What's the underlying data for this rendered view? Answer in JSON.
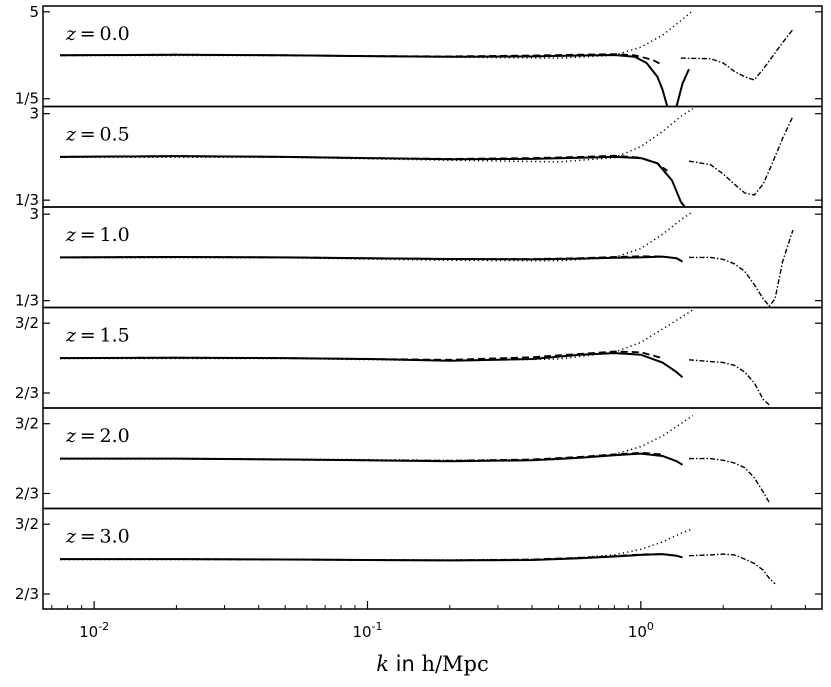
{
  "chart_data": {
    "type": "line",
    "xlabel": "k in h/Mpc",
    "xscale": "log",
    "xlim": [
      0.0065,
      4.6
    ],
    "xticks": [
      "10^-2",
      "10^-1",
      "10^0"
    ],
    "series_styles": [
      "solid",
      "dashed",
      "dotted",
      "dash-dot"
    ],
    "panels": [
      {
        "label": "z = 0.0",
        "yscale": "log",
        "ylim": [
          0.15,
          6.2
        ],
        "yticks": [
          {
            "label": "5",
            "value": 5
          },
          {
            "label": "1/5",
            "value": 0.2
          }
        ],
        "solid": [
          [
            0.0075,
            1.0
          ],
          [
            0.02,
            1.02
          ],
          [
            0.05,
            1.0
          ],
          [
            0.1,
            0.97
          ],
          [
            0.2,
            0.95
          ],
          [
            0.4,
            0.96
          ],
          [
            0.6,
            0.99
          ],
          [
            0.8,
            1.01
          ],
          [
            0.95,
            0.95
          ],
          [
            1.05,
            0.75
          ],
          [
            1.15,
            0.45
          ],
          [
            1.2,
            0.28
          ],
          [
            1.25,
            0.15
          ]
        ],
        "solid_b": [
          [
            1.35,
            0.15
          ],
          [
            1.42,
            0.35
          ],
          [
            1.5,
            0.6
          ]
        ],
        "dashed": [
          [
            0.0075,
            1.0
          ],
          [
            0.02,
            1.02
          ],
          [
            0.05,
            1.0
          ],
          [
            0.1,
            0.97
          ],
          [
            0.2,
            0.96
          ],
          [
            0.4,
            0.99
          ],
          [
            0.6,
            1.02
          ],
          [
            0.8,
            1.04
          ],
          [
            0.95,
            1.0
          ],
          [
            1.1,
            0.85
          ],
          [
            1.2,
            0.7
          ]
        ],
        "dotted": [
          [
            0.0075,
            0.99
          ],
          [
            0.05,
            0.99
          ],
          [
            0.2,
            0.93
          ],
          [
            0.5,
            0.9
          ],
          [
            0.8,
            1.0
          ],
          [
            1.0,
            1.35
          ],
          [
            1.2,
            2.1
          ],
          [
            1.4,
            3.6
          ],
          [
            1.55,
            5.2
          ]
        ],
        "dashdot": [
          [
            1.4,
            0.9
          ],
          [
            1.8,
            0.88
          ],
          [
            2.0,
            0.75
          ],
          [
            2.2,
            0.55
          ],
          [
            2.4,
            0.45
          ],
          [
            2.6,
            0.4
          ],
          [
            2.8,
            0.6
          ],
          [
            3.0,
            0.9
          ],
          [
            3.3,
            1.6
          ],
          [
            3.6,
            2.6
          ]
        ]
      },
      {
        "label": "z = 0.5",
        "yscale": "log",
        "ylim": [
          0.28,
          3.6
        ],
        "yticks": [
          {
            "label": "3",
            "value": 3
          },
          {
            "label": "1/3",
            "value": 0.3333
          }
        ],
        "solid": [
          [
            0.0075,
            1.0
          ],
          [
            0.02,
            1.02
          ],
          [
            0.05,
            1.0
          ],
          [
            0.1,
            0.97
          ],
          [
            0.2,
            0.94
          ],
          [
            0.4,
            0.95
          ],
          [
            0.6,
            0.98
          ],
          [
            0.8,
            1.0
          ],
          [
            1.0,
            0.97
          ],
          [
            1.15,
            0.85
          ],
          [
            1.3,
            0.55
          ],
          [
            1.4,
            0.32
          ],
          [
            1.45,
            0.28
          ]
        ],
        "dashed": [
          [
            0.0075,
            1.0
          ],
          [
            0.02,
            1.02
          ],
          [
            0.05,
            1.0
          ],
          [
            0.1,
            0.97
          ],
          [
            0.2,
            0.95
          ],
          [
            0.4,
            0.97
          ],
          [
            0.6,
            1.0
          ],
          [
            0.8,
            1.03
          ],
          [
            1.0,
            0.98
          ],
          [
            1.15,
            0.85
          ],
          [
            1.25,
            0.7
          ]
        ],
        "dotted": [
          [
            0.0075,
            0.99
          ],
          [
            0.05,
            0.99
          ],
          [
            0.2,
            0.92
          ],
          [
            0.5,
            0.88
          ],
          [
            0.8,
            0.98
          ],
          [
            1.0,
            1.3
          ],
          [
            1.2,
            1.9
          ],
          [
            1.4,
            2.8
          ],
          [
            1.55,
            3.4
          ]
        ],
        "dashdot": [
          [
            1.5,
            0.9
          ],
          [
            1.8,
            0.82
          ],
          [
            2.0,
            0.65
          ],
          [
            2.2,
            0.5
          ],
          [
            2.4,
            0.4
          ],
          [
            2.6,
            0.38
          ],
          [
            2.8,
            0.5
          ],
          [
            3.0,
            0.8
          ],
          [
            3.3,
            1.6
          ],
          [
            3.6,
            2.8
          ]
        ]
      },
      {
        "label": "z = 1.0",
        "yscale": "log",
        "ylim": [
          0.28,
          3.6
        ],
        "yticks": [
          {
            "label": "3",
            "value": 3
          },
          {
            "label": "1/3",
            "value": 0.3333
          }
        ],
        "solid": [
          [
            0.0075,
            1.0
          ],
          [
            0.02,
            1.01
          ],
          [
            0.05,
            1.0
          ],
          [
            0.1,
            0.98
          ],
          [
            0.2,
            0.96
          ],
          [
            0.4,
            0.95
          ],
          [
            0.6,
            0.97
          ],
          [
            0.8,
            0.99
          ],
          [
            1.0,
            1.0
          ],
          [
            1.2,
            1.02
          ],
          [
            1.35,
            0.98
          ],
          [
            1.42,
            0.9
          ]
        ],
        "dashed": [
          [
            0.0075,
            1.0
          ],
          [
            0.02,
            1.01
          ],
          [
            0.05,
            1.0
          ],
          [
            0.1,
            0.98
          ],
          [
            0.2,
            0.96
          ],
          [
            0.4,
            0.96
          ],
          [
            0.6,
            0.98
          ],
          [
            0.8,
            1.01
          ],
          [
            1.0,
            1.03
          ],
          [
            1.2,
            1.02
          ]
        ],
        "dotted": [
          [
            0.0075,
            0.99
          ],
          [
            0.05,
            0.99
          ],
          [
            0.2,
            0.93
          ],
          [
            0.5,
            0.92
          ],
          [
            0.8,
            1.0
          ],
          [
            1.0,
            1.25
          ],
          [
            1.2,
            1.8
          ],
          [
            1.4,
            2.6
          ],
          [
            1.55,
            3.2
          ]
        ],
        "dashdot": [
          [
            1.5,
            1.0
          ],
          [
            1.8,
            1.0
          ],
          [
            2.0,
            0.95
          ],
          [
            2.2,
            0.85
          ],
          [
            2.4,
            0.7
          ],
          [
            2.6,
            0.5
          ],
          [
            2.8,
            0.35
          ],
          [
            2.95,
            0.29
          ],
          [
            3.1,
            0.35
          ],
          [
            3.3,
            0.9
          ],
          [
            3.6,
            2.0
          ]
        ]
      },
      {
        "label": "z = 1.5",
        "yscale": "log",
        "ylim": [
          0.56,
          1.8
        ],
        "yticks": [
          {
            "label": "3/2",
            "value": 1.5
          },
          {
            "label": "2/3",
            "value": 0.6667
          }
        ],
        "solid": [
          [
            0.0075,
            1.0
          ],
          [
            0.02,
            1.005
          ],
          [
            0.05,
            1.0
          ],
          [
            0.1,
            0.99
          ],
          [
            0.2,
            0.97
          ],
          [
            0.4,
            0.99
          ],
          [
            0.6,
            1.04
          ],
          [
            0.8,
            1.06
          ],
          [
            1.0,
            1.04
          ],
          [
            1.2,
            0.95
          ],
          [
            1.35,
            0.85
          ],
          [
            1.42,
            0.8
          ]
        ],
        "dashed": [
          [
            0.0075,
            1.0
          ],
          [
            0.02,
            1.005
          ],
          [
            0.05,
            1.0
          ],
          [
            0.1,
            0.99
          ],
          [
            0.2,
            0.98
          ],
          [
            0.4,
            1.01
          ],
          [
            0.6,
            1.05
          ],
          [
            0.8,
            1.08
          ],
          [
            1.0,
            1.07
          ],
          [
            1.2,
            1.0
          ]
        ],
        "dotted": [
          [
            0.0075,
            0.995
          ],
          [
            0.05,
            0.995
          ],
          [
            0.2,
            0.97
          ],
          [
            0.5,
            0.99
          ],
          [
            0.8,
            1.07
          ],
          [
            1.0,
            1.2
          ],
          [
            1.2,
            1.4
          ],
          [
            1.4,
            1.6
          ],
          [
            1.55,
            1.75
          ]
        ],
        "dashdot": [
          [
            1.5,
            0.98
          ],
          [
            1.8,
            0.96
          ],
          [
            2.0,
            0.95
          ],
          [
            2.2,
            0.92
          ],
          [
            2.4,
            0.85
          ],
          [
            2.6,
            0.75
          ],
          [
            2.8,
            0.62
          ],
          [
            2.95,
            0.58
          ]
        ]
      },
      {
        "label": "z = 2.0",
        "yscale": "log",
        "ylim": [
          0.56,
          1.8
        ],
        "yticks": [
          {
            "label": "3/2",
            "value": 1.5
          },
          {
            "label": "2/3",
            "value": 0.6667
          }
        ],
        "solid": [
          [
            0.0075,
            1.0
          ],
          [
            0.02,
            1.0
          ],
          [
            0.05,
            0.99
          ],
          [
            0.1,
            0.98
          ],
          [
            0.2,
            0.97
          ],
          [
            0.4,
            0.98
          ],
          [
            0.6,
            1.01
          ],
          [
            0.8,
            1.04
          ],
          [
            1.0,
            1.06
          ],
          [
            1.2,
            1.03
          ],
          [
            1.35,
            0.97
          ],
          [
            1.42,
            0.93
          ]
        ],
        "dashed": [
          [
            0.0075,
            1.0
          ],
          [
            0.02,
            1.0
          ],
          [
            0.05,
            0.99
          ],
          [
            0.1,
            0.98
          ],
          [
            0.2,
            0.975
          ],
          [
            0.4,
            0.99
          ],
          [
            0.6,
            1.02
          ],
          [
            0.8,
            1.05
          ],
          [
            1.0,
            1.07
          ],
          [
            1.2,
            1.05
          ]
        ],
        "dotted": [
          [
            0.0075,
            0.995
          ],
          [
            0.05,
            0.995
          ],
          [
            0.2,
            0.98
          ],
          [
            0.5,
            0.99
          ],
          [
            0.8,
            1.05
          ],
          [
            1.0,
            1.15
          ],
          [
            1.2,
            1.3
          ],
          [
            1.4,
            1.5
          ],
          [
            1.55,
            1.65
          ]
        ],
        "dashdot": [
          [
            1.5,
            1.0
          ],
          [
            1.8,
            1.0
          ],
          [
            2.0,
            0.98
          ],
          [
            2.2,
            0.95
          ],
          [
            2.4,
            0.9
          ],
          [
            2.6,
            0.8
          ],
          [
            2.8,
            0.68
          ],
          [
            2.95,
            0.6
          ]
        ]
      },
      {
        "label": "z = 3.0",
        "yscale": "log",
        "ylim": [
          0.56,
          1.8
        ],
        "yticks": [
          {
            "label": "3/2",
            "value": 1.5
          },
          {
            "label": "2/3",
            "value": 0.6667
          }
        ],
        "solid": [
          [
            0.0075,
            1.0
          ],
          [
            0.02,
            1.0
          ],
          [
            0.05,
            0.995
          ],
          [
            0.1,
            0.99
          ],
          [
            0.2,
            0.985
          ],
          [
            0.4,
            0.99
          ],
          [
            0.6,
            1.01
          ],
          [
            0.8,
            1.03
          ],
          [
            1.0,
            1.05
          ],
          [
            1.2,
            1.06
          ],
          [
            1.35,
            1.04
          ],
          [
            1.42,
            1.02
          ]
        ],
        "dashed": [
          [
            0.0075,
            1.0
          ],
          [
            0.02,
            1.0
          ],
          [
            0.05,
            0.995
          ],
          [
            0.1,
            0.99
          ],
          [
            0.2,
            0.985
          ],
          [
            0.4,
            0.995
          ],
          [
            0.6,
            1.015
          ],
          [
            0.8,
            1.035
          ],
          [
            1.0,
            1.055
          ],
          [
            1.2,
            1.06
          ]
        ],
        "dotted": [
          [
            0.0075,
            0.995
          ],
          [
            0.05,
            0.995
          ],
          [
            0.2,
            0.99
          ],
          [
            0.5,
            1.0
          ],
          [
            0.8,
            1.05
          ],
          [
            1.0,
            1.12
          ],
          [
            1.2,
            1.22
          ],
          [
            1.4,
            1.35
          ],
          [
            1.55,
            1.42
          ]
        ],
        "dashdot": [
          [
            1.5,
            1.04
          ],
          [
            1.8,
            1.05
          ],
          [
            2.0,
            1.06
          ],
          [
            2.2,
            1.05
          ],
          [
            2.4,
            1.0
          ],
          [
            2.6,
            0.95
          ],
          [
            2.8,
            0.88
          ],
          [
            2.95,
            0.8
          ],
          [
            3.1,
            0.75
          ]
        ]
      }
    ]
  }
}
